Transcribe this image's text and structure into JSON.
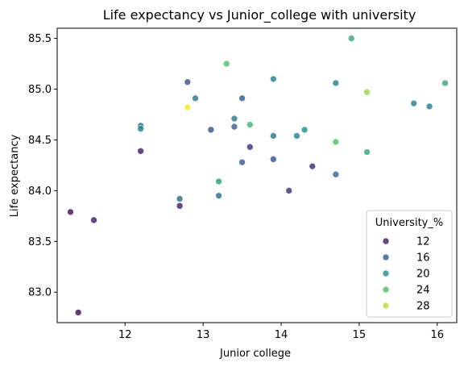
{
  "chart_data": {
    "type": "scatter",
    "title": "Life expectancy vs Junior_college with university",
    "xlabel": "Junior college",
    "ylabel": "Life expectancy",
    "xlim": [
      11.13,
      16.25
    ],
    "ylim": [
      82.7,
      85.6
    ],
    "xticks": [
      "12",
      "13",
      "14",
      "15",
      "16"
    ],
    "xtick_values": [
      12,
      13,
      14,
      15,
      16
    ],
    "yticks": [
      "83.0",
      "83.5",
      "84.0",
      "84.5",
      "85.0",
      "85.5"
    ],
    "ytick_values": [
      83.0,
      83.5,
      84.0,
      84.5,
      85.0,
      85.5
    ],
    "grid": false,
    "hue_label": "University_%",
    "hue_range": [
      10,
      30
    ],
    "colormap": [
      "#440154",
      "#3b528b",
      "#21918c",
      "#5ec962",
      "#fde725"
    ],
    "legend": {
      "title": "University_%",
      "placement": "lower right",
      "entries": [
        {
          "label": "12",
          "value": 12
        },
        {
          "label": "16",
          "value": 16
        },
        {
          "label": "20",
          "value": 20
        },
        {
          "label": "24",
          "value": 24
        },
        {
          "label": "28",
          "value": 28
        }
      ]
    },
    "points": [
      {
        "x": 11.3,
        "y": 83.79,
        "u": 11
      },
      {
        "x": 11.4,
        "y": 82.8,
        "u": 11
      },
      {
        "x": 11.6,
        "y": 83.71,
        "u": 12
      },
      {
        "x": 12.2,
        "y": 84.39,
        "u": 12
      },
      {
        "x": 12.2,
        "y": 84.64,
        "u": 18
      },
      {
        "x": 12.2,
        "y": 84.61,
        "u": 19
      },
      {
        "x": 12.7,
        "y": 83.85,
        "u": 12
      },
      {
        "x": 12.7,
        "y": 83.92,
        "u": 17
      },
      {
        "x": 12.8,
        "y": 85.07,
        "u": 15
      },
      {
        "x": 12.8,
        "y": 84.82,
        "u": 30
      },
      {
        "x": 12.9,
        "y": 84.91,
        "u": 18
      },
      {
        "x": 13.1,
        "y": 84.6,
        "u": 15
      },
      {
        "x": 13.2,
        "y": 83.95,
        "u": 17
      },
      {
        "x": 13.2,
        "y": 84.09,
        "u": 21
      },
      {
        "x": 13.3,
        "y": 85.25,
        "u": 24
      },
      {
        "x": 13.4,
        "y": 84.71,
        "u": 18
      },
      {
        "x": 13.4,
        "y": 84.63,
        "u": 16
      },
      {
        "x": 13.5,
        "y": 84.91,
        "u": 16
      },
      {
        "x": 13.5,
        "y": 84.28,
        "u": 16
      },
      {
        "x": 13.6,
        "y": 84.43,
        "u": 13
      },
      {
        "x": 13.6,
        "y": 84.65,
        "u": 23
      },
      {
        "x": 13.9,
        "y": 85.1,
        "u": 19
      },
      {
        "x": 13.9,
        "y": 84.54,
        "u": 18
      },
      {
        "x": 13.9,
        "y": 84.31,
        "u": 15
      },
      {
        "x": 14.1,
        "y": 84.0,
        "u": 13
      },
      {
        "x": 14.2,
        "y": 84.54,
        "u": 19
      },
      {
        "x": 14.3,
        "y": 84.6,
        "u": 20
      },
      {
        "x": 14.4,
        "y": 84.24,
        "u": 13
      },
      {
        "x": 14.7,
        "y": 85.06,
        "u": 19
      },
      {
        "x": 14.7,
        "y": 84.48,
        "u": 24
      },
      {
        "x": 14.7,
        "y": 84.16,
        "u": 17
      },
      {
        "x": 14.9,
        "y": 85.5,
        "u": 22
      },
      {
        "x": 15.1,
        "y": 84.97,
        "u": 27
      },
      {
        "x": 15.1,
        "y": 84.38,
        "u": 22
      },
      {
        "x": 15.7,
        "y": 84.86,
        "u": 19
      },
      {
        "x": 15.9,
        "y": 84.83,
        "u": 19
      },
      {
        "x": 16.1,
        "y": 85.06,
        "u": 22
      }
    ]
  }
}
